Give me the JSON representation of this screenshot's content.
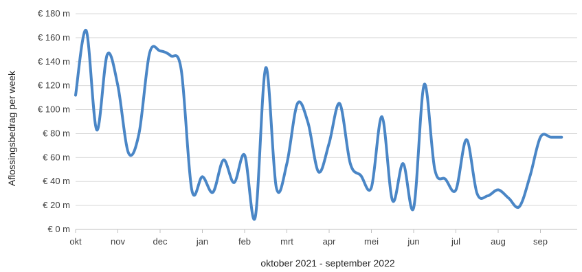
{
  "chart_data": {
    "type": "line",
    "title": "",
    "xlabel": "oktober 2021 - september 2022",
    "ylabel": "Aflossingsbedrag per week",
    "ylim": [
      0,
      180
    ],
    "yticks": [
      0,
      20,
      40,
      60,
      80,
      100,
      120,
      140,
      160,
      180
    ],
    "ytick_labels": [
      "€ 0 m",
      "€ 20 m",
      "€ 40 m",
      "€ 60 m",
      "€ 80 m",
      "€ 100 m",
      "€ 120 m",
      "€ 140 m",
      "€ 160 m",
      "€ 180 m"
    ],
    "grid": true,
    "legend": "none",
    "color": "#4a86c6",
    "categories": [
      "okt",
      "nov",
      "dec",
      "jan",
      "feb",
      "mrt",
      "apr",
      "mei",
      "jun",
      "jul",
      "aug",
      "sep"
    ],
    "series": [
      {
        "x": [
          0,
          0.25,
          0.5,
          0.75,
          1,
          1.25,
          1.5,
          1.75,
          2,
          2.25,
          2.5,
          2.75,
          3,
          3.25,
          3.5,
          3.75,
          4,
          4.25,
          4.5,
          4.75,
          5,
          5.25,
          5.5,
          5.75,
          6,
          6.25,
          6.5,
          6.75,
          7,
          7.25,
          7.5,
          7.75,
          8,
          8.25,
          8.5,
          8.75,
          9,
          9.25,
          9.5,
          9.75,
          10,
          10.25,
          10.5,
          10.75,
          11,
          11.25,
          11.5
        ],
        "values": [
          112,
          166,
          83,
          146,
          120,
          64,
          80,
          147,
          149,
          145,
          133,
          33,
          44,
          31,
          58,
          39,
          62,
          10,
          135,
          35,
          55,
          105,
          89,
          48,
          72,
          105,
          55,
          45,
          35,
          94,
          24,
          55,
          18,
          121,
          50,
          42,
          33,
          75,
          30,
          28,
          33,
          26,
          19,
          44,
          77,
          77,
          77
        ]
      }
    ]
  }
}
